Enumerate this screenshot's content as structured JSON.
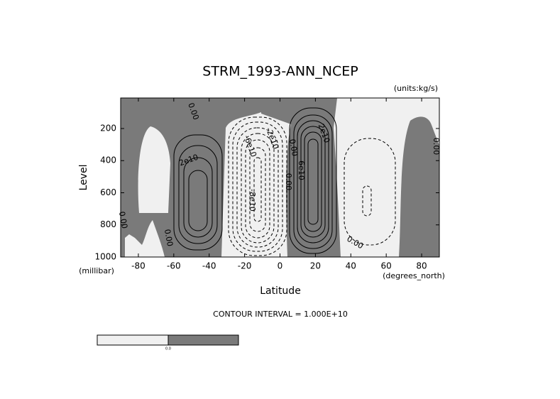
{
  "chart_data": {
    "type": "contour",
    "title": "STRM_1993-ANN_NCEP",
    "units": "(units:kg/s)",
    "xlabel": "Latitude",
    "xunits": "(degrees_north)",
    "ylabel": "Level",
    "yunits": "(millibar)",
    "xlim": [
      -90,
      90
    ],
    "xticks": [
      -80,
      -60,
      -40,
      -20,
      0,
      20,
      40,
      60,
      80
    ],
    "ylim": [
      1000,
      10
    ],
    "yticks": [
      200,
      400,
      600,
      800,
      1000
    ],
    "contour_interval": "CONTOUR INTERVAL = 1.000E+10",
    "contour_labels": [
      "0.00",
      "2e10",
      "-8e10",
      "-6e10",
      "-2e10",
      "0.00",
      "0.00",
      "6e10",
      "2e10",
      "0.00",
      "0.00",
      "0.00",
      "0.00"
    ],
    "colorbar_label": "0.0"
  }
}
